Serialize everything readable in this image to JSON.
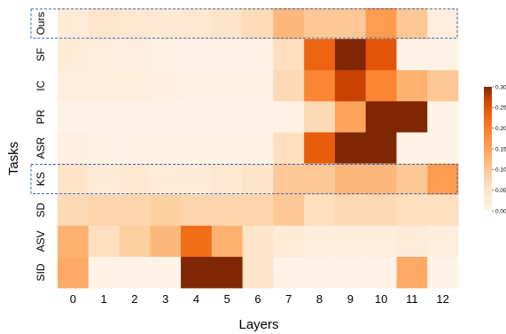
{
  "chart_data": {
    "type": "heatmap",
    "xlabel": "Layers",
    "ylabel": "Tasks",
    "x_categories": [
      "0",
      "1",
      "2",
      "3",
      "4",
      "5",
      "6",
      "7",
      "8",
      "9",
      "10",
      "11",
      "12"
    ],
    "y_categories": [
      "Ours",
      "SF",
      "IC",
      "PR",
      "ASR",
      "KS",
      "SD",
      "ASV",
      "SID"
    ],
    "values": [
      [
        0.03,
        0.045,
        0.04,
        0.035,
        0.04,
        0.05,
        0.065,
        0.12,
        0.1,
        0.1,
        0.16,
        0.1,
        0.02
      ],
      [
        0.03,
        0.025,
        0.015,
        0.01,
        0.008,
        0.005,
        0.008,
        0.06,
        0.23,
        0.3,
        0.25,
        0.005,
        0.005
      ],
      [
        0.02,
        0.02,
        0.02,
        0.015,
        0.01,
        0.01,
        0.01,
        0.07,
        0.19,
        0.27,
        0.19,
        0.13,
        0.1
      ],
      [
        0.005,
        0.005,
        0.005,
        0.005,
        0.005,
        0.005,
        0.005,
        0.01,
        0.07,
        0.15,
        0.3,
        0.3,
        0.005
      ],
      [
        0.015,
        0.01,
        0.01,
        0.01,
        0.01,
        0.01,
        0.01,
        0.06,
        0.24,
        0.3,
        0.3,
        0.005,
        0.005
      ],
      [
        0.05,
        0.03,
        0.04,
        0.03,
        0.03,
        0.04,
        0.05,
        0.1,
        0.1,
        0.12,
        0.12,
        0.1,
        0.16
      ],
      [
        0.07,
        0.08,
        0.08,
        0.09,
        0.08,
        0.08,
        0.08,
        0.1,
        0.06,
        0.07,
        0.07,
        0.06,
        0.06
      ],
      [
        0.13,
        0.06,
        0.09,
        0.12,
        0.22,
        0.13,
        0.05,
        0.03,
        0.02,
        0.02,
        0.02,
        0.03,
        0.02
      ],
      [
        0.14,
        0.005,
        0.005,
        0.005,
        0.3,
        0.3,
        0.05,
        0.005,
        0.005,
        0.005,
        0.005,
        0.14,
        0.005
      ]
    ],
    "vmin": 0.0,
    "vmax": 0.3,
    "colormap": "Oranges",
    "colorbar_ticks": [
      "0.00",
      "0.05",
      "0.10",
      "0.15",
      "0.20",
      "0.25",
      "0.30"
    ],
    "highlighted_rows": [
      "Ours",
      "KS"
    ],
    "highlight_style": "dashed",
    "highlight_color": "#3a66b8",
    "grid": false,
    "colorbar_position": "right"
  }
}
